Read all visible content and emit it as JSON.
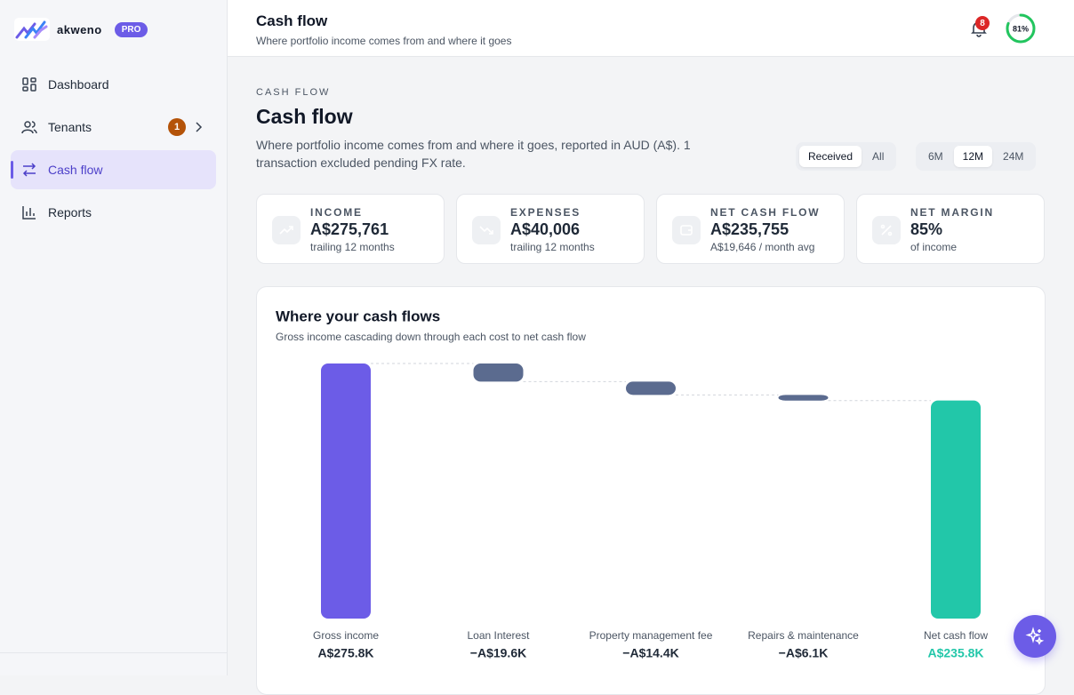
{
  "sidebar": {
    "brand": "akweno",
    "badge": "PRO",
    "nav": [
      {
        "label": "Dashboard"
      },
      {
        "label": "Tenants",
        "count": 1
      },
      {
        "label": "Cash flow"
      },
      {
        "label": "Reports"
      }
    ]
  },
  "header": {
    "title": "Cash flow",
    "subtitle": "Where portfolio income comes from and where it goes",
    "notifications": 8,
    "score": {
      "value": 81,
      "label": "81%"
    }
  },
  "page": {
    "eyebrow": "CASH FLOW",
    "title": "Cash flow",
    "description": "Where portfolio income comes from and where it goes, reported in AUD (A$). 1 transaction excluded pending FX rate.",
    "toggle": [
      "Received",
      "All"
    ],
    "periods": [
      "6M",
      "12M",
      "24M"
    ]
  },
  "kpis": [
    {
      "label": "INCOME",
      "value": "A$275,761",
      "note": "trailing 12 months"
    },
    {
      "label": "EXPENSES",
      "value": "A$40,006",
      "note": "trailing 12 months"
    },
    {
      "label": "NET CASH FLOW",
      "value": "A$235,755",
      "note": "A$19,646 / month avg"
    },
    {
      "label": "NET MARGIN",
      "value": "85%",
      "note": "of income"
    }
  ],
  "chart_data": {
    "type": "waterfall",
    "title": "Where your cash flows",
    "subtitle": "Gross income cascading down through each cost to net cash flow",
    "categories": [
      "Gross income",
      "Loan Interest",
      "Property management fee",
      "Repairs & maintenance",
      "Net cash flow"
    ],
    "values": [
      275800,
      -19600,
      -14400,
      -6100,
      235800
    ],
    "value_labels": [
      "A$275.8K",
      "−A$19.6K",
      "−A$14.4K",
      "−A$6.1K",
      "A$235.8K"
    ],
    "colors": [
      "#6c5ce7",
      "#5b6b8f",
      "#5b6b8f",
      "#5b6b8f",
      "#22c7a9"
    ]
  }
}
